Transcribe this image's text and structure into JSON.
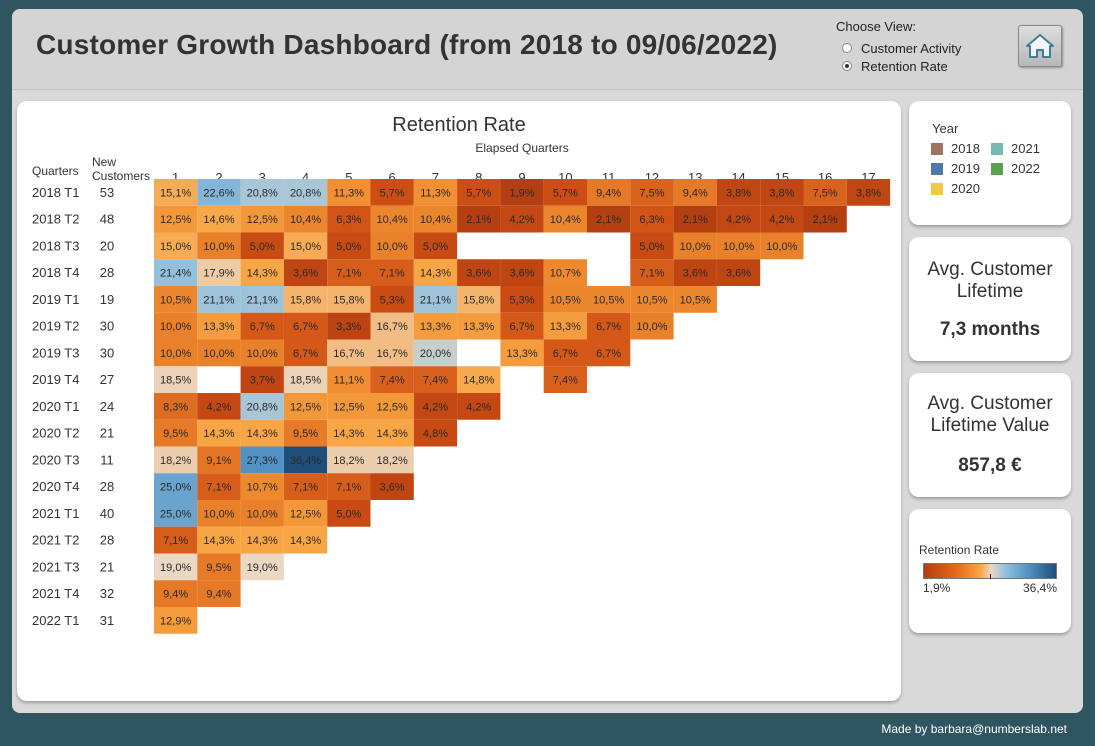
{
  "header": {
    "title": "Customer Growth Dashboard (from 2018 to 09/06/2022)",
    "choose_view_label": "Choose View:",
    "options": [
      {
        "label": "Customer Activity",
        "checked": false
      },
      {
        "label": "Retention Rate",
        "checked": true
      }
    ],
    "home_icon": "home-icon"
  },
  "chart_data": {
    "type": "heatmap",
    "title": "Retention Rate",
    "xlabel": "Elapsed Quarters",
    "row_header": "Quarters",
    "count_header": "New Customers",
    "columns": [
      "1",
      "2",
      "3",
      "4",
      "5",
      "6",
      "7",
      "8",
      "9",
      "10",
      "11",
      "12",
      "13",
      "14",
      "15",
      "16",
      "17"
    ],
    "rows": [
      {
        "quarter": "2018 T1",
        "new": "53",
        "values": [
          15.1,
          22.6,
          20.8,
          20.8,
          11.3,
          5.7,
          11.3,
          5.7,
          1.9,
          5.7,
          9.4,
          7.5,
          9.4,
          3.8,
          3.8,
          7.5,
          3.8
        ]
      },
      {
        "quarter": "2018 T2",
        "new": "48",
        "values": [
          12.5,
          14.6,
          12.5,
          10.4,
          6.3,
          10.4,
          10.4,
          2.1,
          4.2,
          10.4,
          2.1,
          6.3,
          2.1,
          4.2,
          4.2,
          2.1
        ]
      },
      {
        "quarter": "2018 T3",
        "new": "20",
        "values": [
          15.0,
          10.0,
          5.0,
          15.0,
          5.0,
          10.0,
          5.0,
          null,
          null,
          null,
          null,
          5.0,
          10.0,
          10.0,
          10.0
        ]
      },
      {
        "quarter": "2018 T4",
        "new": "28",
        "values": [
          21.4,
          17.9,
          14.3,
          3.6,
          7.1,
          7.1,
          14.3,
          3.6,
          3.6,
          10.7,
          null,
          7.1,
          3.6,
          3.6
        ]
      },
      {
        "quarter": "2019 T1",
        "new": "19",
        "values": [
          10.5,
          21.1,
          21.1,
          15.8,
          15.8,
          5.3,
          21.1,
          15.8,
          5.3,
          10.5,
          10.5,
          10.5,
          10.5
        ]
      },
      {
        "quarter": "2019 T2",
        "new": "30",
        "values": [
          10.0,
          13.3,
          6.7,
          6.7,
          3.3,
          16.7,
          13.3,
          13.3,
          6.7,
          13.3,
          6.7,
          10.0
        ]
      },
      {
        "quarter": "2019 T3",
        "new": "30",
        "values": [
          10.0,
          10.0,
          10.0,
          6.7,
          16.7,
          16.7,
          20.0,
          null,
          13.3,
          6.7,
          6.7
        ]
      },
      {
        "quarter": "2019 T4",
        "new": "27",
        "values": [
          18.5,
          null,
          3.7,
          18.5,
          11.1,
          7.4,
          7.4,
          14.8,
          null,
          7.4
        ]
      },
      {
        "quarter": "2020 T1",
        "new": "24",
        "values": [
          8.3,
          4.2,
          20.8,
          12.5,
          12.5,
          12.5,
          4.2,
          4.2
        ]
      },
      {
        "quarter": "2020 T2",
        "new": "21",
        "values": [
          9.5,
          14.3,
          14.3,
          9.5,
          14.3,
          14.3,
          4.8
        ]
      },
      {
        "quarter": "2020 T3",
        "new": "11",
        "values": [
          18.2,
          9.1,
          27.3,
          36.4,
          18.2,
          18.2
        ]
      },
      {
        "quarter": "2020 T4",
        "new": "28",
        "values": [
          25.0,
          7.1,
          10.7,
          7.1,
          7.1,
          3.6
        ]
      },
      {
        "quarter": "2021 T1",
        "new": "40",
        "values": [
          25.0,
          10.0,
          10.0,
          12.5,
          5.0
        ]
      },
      {
        "quarter": "2021 T2",
        "new": "28",
        "values": [
          7.1,
          14.3,
          14.3,
          14.3
        ]
      },
      {
        "quarter": "2021 T3",
        "new": "21",
        "values": [
          19.0,
          9.5,
          19.0
        ]
      },
      {
        "quarter": "2021 T4",
        "new": "32",
        "values": [
          9.4,
          9.4
        ]
      },
      {
        "quarter": "2022 T1",
        "new": "31",
        "values": [
          12.9
        ]
      }
    ],
    "color_scale": {
      "min": 1.9,
      "mid": 19.0,
      "max": 36.4,
      "min_label": "1,9%",
      "max_label": "36,4%"
    }
  },
  "legend_year": {
    "title": "Year",
    "items": [
      {
        "label": "2018",
        "color": "#9c7561"
      },
      {
        "label": "2021",
        "color": "#77b8b1"
      },
      {
        "label": "2019",
        "color": "#4e79a7"
      },
      {
        "label": "2022",
        "color": "#59a14f"
      },
      {
        "label": "2020",
        "color": "#edc948"
      }
    ]
  },
  "kpi_lifetime": {
    "label": "Avg. Customer Lifetime",
    "value": "7,3 months"
  },
  "kpi_value": {
    "label": "Avg. Customer Lifetime Value",
    "value": "857,8 €"
  },
  "legend_color": {
    "title": "Retention Rate",
    "min_label": "1,9%",
    "max_label": "36,4%"
  },
  "footer": {
    "credit": "Made by barbara@numberslab.net"
  }
}
